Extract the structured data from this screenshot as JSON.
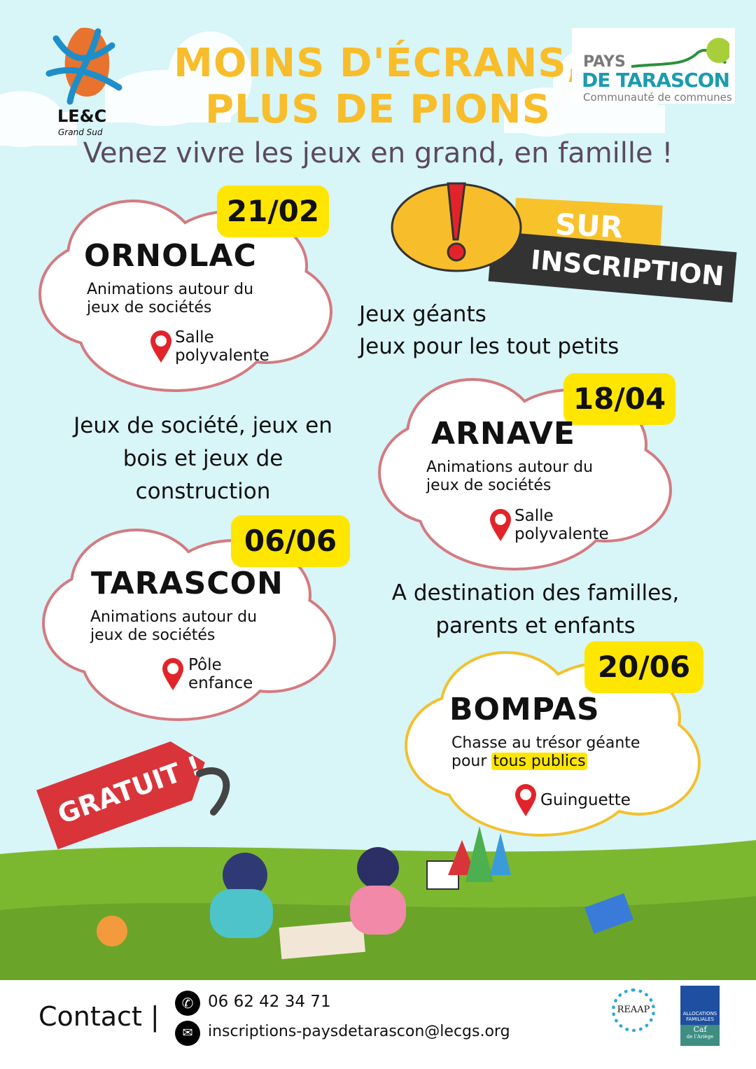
{
  "colors": {
    "background": "#d8f5f8",
    "title": "#f8bd2a",
    "date_badge": "#ffe600",
    "cloud_pink": "#d37b80",
    "cloud_yellow": "#f2c12e",
    "gratuit": "#d9343a",
    "grass": "#7cb82f"
  },
  "header": {
    "left_logo": {
      "name": "LE&C",
      "sub": "Grand Sud"
    },
    "title_line1": "MOINS D'ÉCRANS,",
    "title_line2": "PLUS DE PIONS",
    "right_logo": {
      "line1": "PAYS",
      "line2": "DE TARASCON",
      "line3": "Communauté de communes"
    },
    "subtitle": "Venez vivre les jeux en grand, en famille !"
  },
  "banner": {
    "line1": "SUR",
    "line2": "INSCRIPTION",
    "icon": "exclamation-icon"
  },
  "events": [
    {
      "date": "21/02",
      "city": "ORNOLAC",
      "desc1": "Animations autour du",
      "desc2": "jeux de sociétés",
      "place1": "Salle",
      "place2": "polyvalente"
    },
    {
      "date": "18/04",
      "city": "ARNAVE",
      "desc1": "Animations autour du",
      "desc2": "jeux de sociétés",
      "place1": "Salle",
      "place2": "polyvalente"
    },
    {
      "date": "06/06",
      "city": "TARASCON",
      "desc1": "Animations autour du",
      "desc2": "jeux de sociétés",
      "place1": "Pôle",
      "place2": "enfance"
    },
    {
      "date": "20/06",
      "city": "BOMPAS",
      "desc1": "Chasse au trésor géante",
      "desc2_prefix": "pour",
      "desc2_highlight": "tous publics",
      "place1": "Guinguette"
    }
  ],
  "texts": {
    "giant1": "Jeux géants",
    "giant2": "Jeux pour les tout petits",
    "society1": "Jeux de société, jeux en",
    "society2": "bois et jeux de",
    "society3": "construction",
    "dest1": "A destination des familles,",
    "dest2": "parents et enfants"
  },
  "gratuit": "GRATUIT !",
  "footer": {
    "contact": "Contact |",
    "phone": "06 62 42 34 71",
    "email": "inscriptions-paysdetarascon@lecgs.org",
    "logo1": "REAAP",
    "logo2_line1": "ALLOCATIONS FAMILIALES",
    "logo2_line2": "Caf",
    "logo2_line3": "de l'Ariège"
  }
}
